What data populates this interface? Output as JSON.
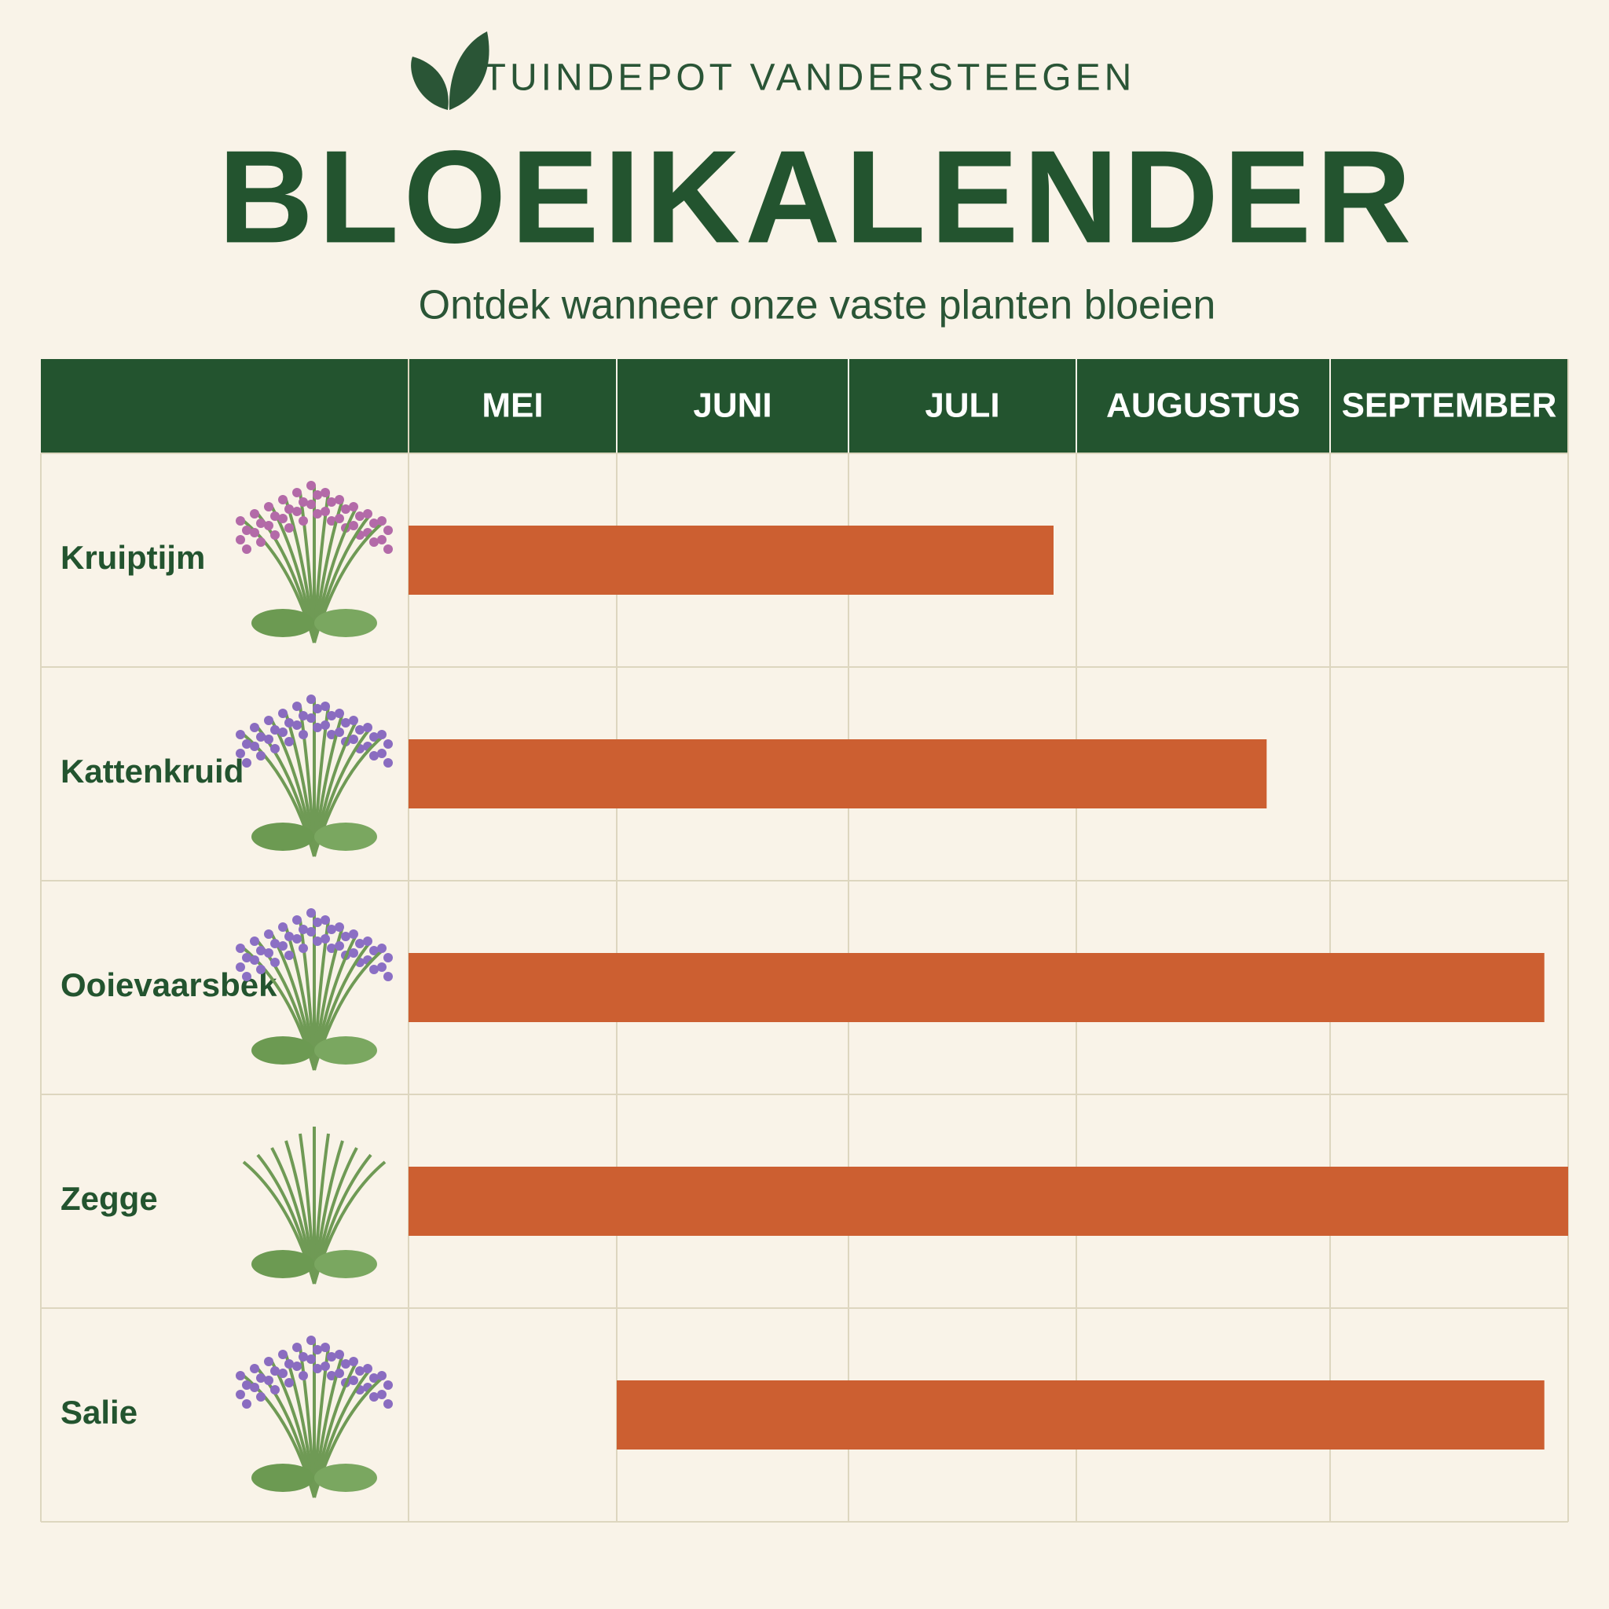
{
  "chart_data": {
    "type": "gantt",
    "brand": "TUINDEPOT VANDERSTEEGEN",
    "title": "BLOEIKALENDER",
    "subtitle": "Ontdek wanneer onze vaste planten bloeien",
    "months": [
      "MEI",
      "JUNI",
      "JULI",
      "AUGUSTUS",
      "SEPTEMBER"
    ],
    "categories": [
      "Kruiptijm",
      "Kattenkruid",
      "Ooievaarsbek",
      "Zegge",
      "Salie"
    ],
    "start": [
      0,
      0,
      0,
      0,
      1
    ],
    "end": [
      2.9,
      3.75,
      4.9,
      5,
      4.9
    ],
    "color": "#cc5f31"
  }
}
